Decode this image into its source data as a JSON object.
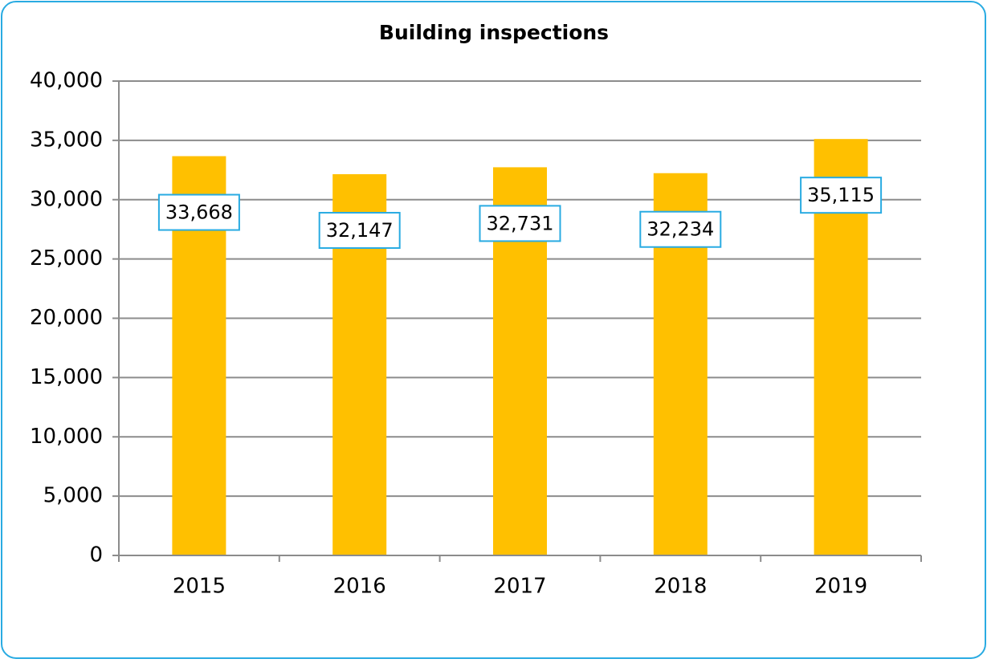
{
  "chart_data": {
    "type": "bar",
    "title": "Building inspections",
    "categories": [
      "2015",
      "2016",
      "2017",
      "2018",
      "2019"
    ],
    "values": [
      33668,
      32147,
      32731,
      32234,
      35115
    ],
    "value_labels": [
      "33,668",
      "32,147",
      "32,731",
      "32,234",
      "35,115"
    ],
    "color": "#ffc000",
    "ylim": [
      0,
      40000
    ],
    "yticks": [
      0,
      {
        "value": 5000,
        "label": "5,000"
      },
      {
        "value": 10000,
        "label": "10,000"
      },
      {
        "value": 15000,
        "label": "15,000"
      },
      {
        "value": 20000,
        "label": "20,000"
      },
      {
        "value": 25000,
        "label": "25,000"
      },
      {
        "value": 30000,
        "label": "30,000"
      },
      {
        "value": 35000,
        "label": "35,000"
      },
      {
        "value": 40000,
        "label": "40,000"
      }
    ],
    "grid": true
  }
}
